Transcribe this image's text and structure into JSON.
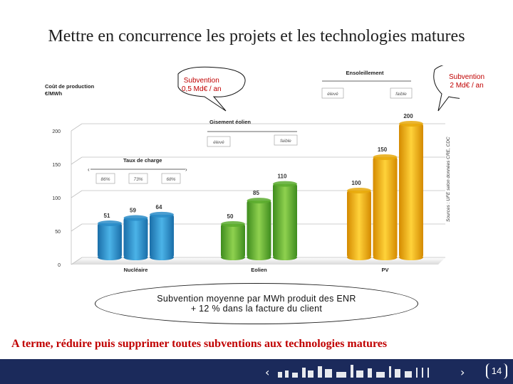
{
  "title": "Mettre en concurrence les projets et les technologies matures",
  "chart_data": {
    "type": "bar",
    "ylabel_line1": "Coût de production",
    "ylabel_line2": "€/MWh",
    "ylim": [
      0,
      200
    ],
    "yticks": [
      0,
      50,
      100,
      150,
      200
    ],
    "groups": [
      {
        "name": "Nucléaire",
        "values": [
          51,
          59,
          64
        ]
      },
      {
        "name": "Eolien",
        "values": [
          50,
          85,
          110
        ]
      },
      {
        "name": "PV",
        "values": [
          100,
          150,
          200
        ]
      }
    ],
    "colors": [
      "#2a8cc8",
      "#5aac2e",
      "#e8a90c"
    ],
    "annotations": {
      "taux_de_charge": {
        "label": "Taux de charge",
        "items": [
          "86%",
          "73%",
          "68%"
        ]
      },
      "gisement_eolien": {
        "label": "Gisement éolien",
        "left": "élevé",
        "right": "faible"
      },
      "ensoleillement": {
        "label": "Ensoleillement",
        "left": "élevé",
        "right": "faible"
      },
      "source": "Sources : UFE selon données CRE, CDC"
    }
  },
  "callouts": {
    "left_line1": "Subvention",
    "left_line2": "0,5 Md€ / an",
    "right_line1": "Subvention",
    "right_line2": "2 Md€ / an"
  },
  "ellipse_note": {
    "line1": "Subvention moyenne par MWh produit des ENR",
    "line2": "+ 12 % dans la facture du client"
  },
  "conclusion": "A terme, réduire puis supprimer toutes subventions aux technologies matures",
  "footer": {
    "page_number": "14",
    "nav_prev": "‹",
    "nav_next": "›"
  }
}
